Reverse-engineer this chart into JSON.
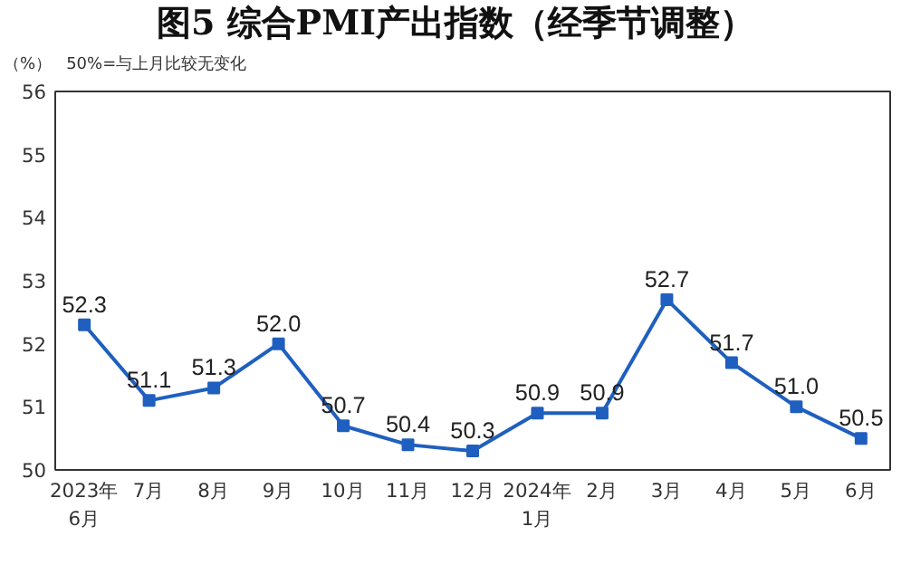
{
  "chart_data": {
    "type": "line",
    "title": "图5  综合PMI产出指数（经季节调整）",
    "ylabel": "（%）",
    "annotations": [
      "50%=与上月比较无变化"
    ],
    "categories": [
      "2023年\n6月",
      "7月",
      "8月",
      "9月",
      "10月",
      "11月",
      "12月",
      "2024年\n1月",
      "2月",
      "3月",
      "4月",
      "5月",
      "6月"
    ],
    "series": [
      {
        "color": "#1f5fbf",
        "values": [
          52.3,
          51.1,
          51.3,
          52.0,
          50.7,
          50.4,
          50.3,
          50.9,
          50.9,
          52.7,
          51.7,
          51.0,
          50.5
        ],
        "value_labels": [
          "52.3",
          "51.1",
          "51.3",
          "52.0",
          "50.7",
          "50.4",
          "50.3",
          "50.9",
          "50.9",
          "52.7",
          "51.7",
          "51.0",
          "50.5"
        ]
      }
    ],
    "ylim": [
      50,
      56
    ],
    "yticks": [
      50,
      51,
      52,
      53,
      54,
      55,
      56
    ],
    "marker": "square",
    "line_style": "solid",
    "grid": false
  }
}
